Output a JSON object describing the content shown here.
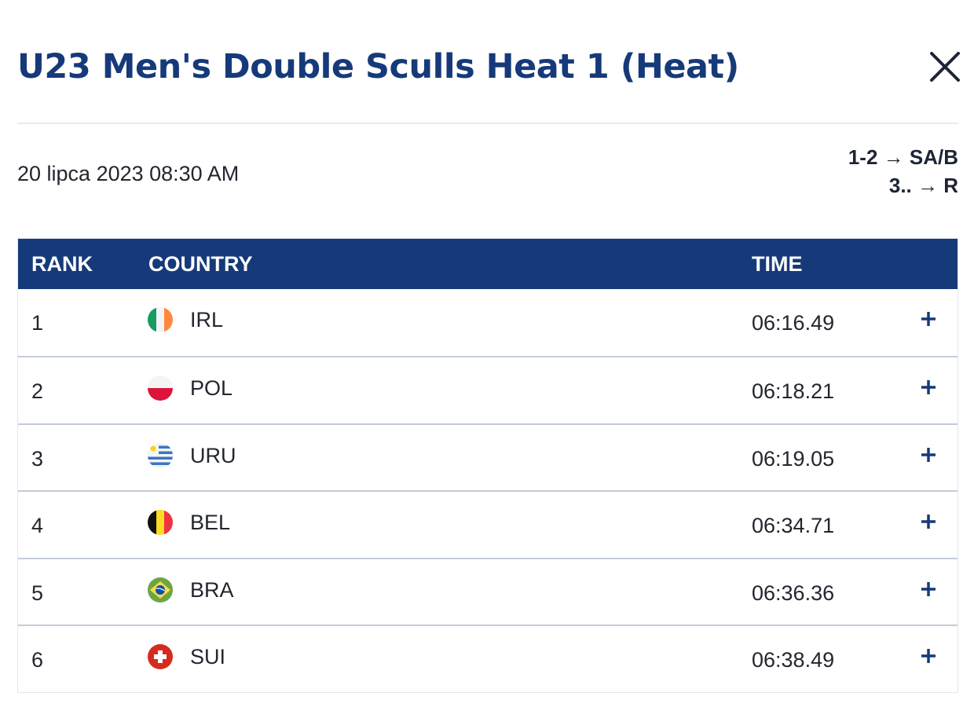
{
  "header": {
    "title": "U23 Men's Double Sculls Heat 1 (Heat)",
    "close_icon": "close-icon"
  },
  "race": {
    "datetime": "20 lipca 2023 08:30 AM",
    "progression": [
      "1-2 → SA/B",
      "3.. → R"
    ]
  },
  "table": {
    "columns": {
      "rank": "RANK",
      "country": "COUNTRY",
      "time": "TIME"
    },
    "rows": [
      {
        "rank": "1",
        "country": "IRL",
        "flag": "flag-ireland",
        "time": "06:16.49",
        "expand_icon": "plus-icon"
      },
      {
        "rank": "2",
        "country": "POL",
        "flag": "flag-poland",
        "time": "06:18.21",
        "expand_icon": "plus-icon"
      },
      {
        "rank": "3",
        "country": "URU",
        "flag": "flag-uruguay",
        "time": "06:19.05",
        "expand_icon": "plus-icon"
      },
      {
        "rank": "4",
        "country": "BEL",
        "flag": "flag-belgium",
        "time": "06:34.71",
        "expand_icon": "plus-icon"
      },
      {
        "rank": "5",
        "country": "BRA",
        "flag": "flag-brazil",
        "time": "06:36.36",
        "expand_icon": "plus-icon"
      },
      {
        "rank": "6",
        "country": "SUI",
        "flag": "flag-switzerland",
        "time": "06:38.49",
        "expand_icon": "plus-icon"
      }
    ]
  },
  "colors": {
    "brand_blue": "#163a79",
    "text": "#23262f",
    "row_divider": "#c3ccd9"
  }
}
